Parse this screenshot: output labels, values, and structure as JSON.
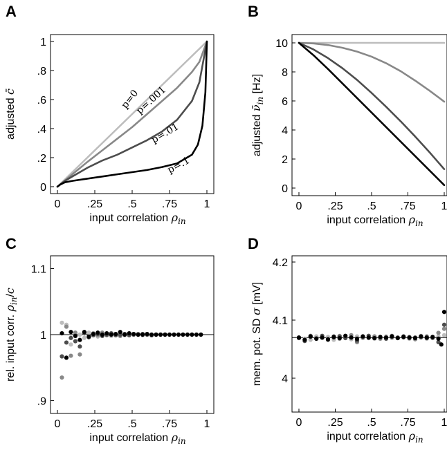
{
  "chart_data": [
    {
      "panel": "A",
      "type": "line",
      "xlabel": "input correlation",
      "xlabel_symbol": "ρ",
      "xlabel_sub": "in",
      "ylabel": "adjusted",
      "ylabel_symbol": "c̄",
      "xlim": [
        0,
        1
      ],
      "ylim": [
        0,
        1
      ],
      "xticks": [
        0,
        0.25,
        0.5,
        0.75,
        1
      ],
      "xtick_labels": [
        "0",
        ".25",
        ".5",
        ".75",
        "1"
      ],
      "yticks": [
        0,
        0.2,
        0.4,
        0.6,
        0.8,
        1
      ],
      "ytick_labels": [
        "0",
        ".2",
        ".4",
        ".6",
        ".8",
        "1"
      ],
      "series": [
        {
          "label": "p=0",
          "color": "#bdbdbd",
          "x": [
            0,
            0.1,
            0.2,
            0.3,
            0.4,
            0.5,
            0.6,
            0.7,
            0.8,
            0.9,
            1.0
          ],
          "y": [
            0,
            0.1,
            0.2,
            0.3,
            0.4,
            0.5,
            0.6,
            0.7,
            0.8,
            0.9,
            1.0
          ]
        },
        {
          "label": "p=.001",
          "color": "#888888",
          "x": [
            0,
            0.1,
            0.2,
            0.3,
            0.4,
            0.5,
            0.6,
            0.7,
            0.8,
            0.9,
            0.95,
            1.0
          ],
          "y": [
            0,
            0.085,
            0.17,
            0.25,
            0.33,
            0.41,
            0.5,
            0.59,
            0.68,
            0.79,
            0.86,
            1.0
          ]
        },
        {
          "label": "p=.01",
          "color": "#4d4d4d",
          "x": [
            0,
            0.05,
            0.1,
            0.2,
            0.3,
            0.4,
            0.5,
            0.6,
            0.7,
            0.8,
            0.9,
            0.95,
            1.0
          ],
          "y": [
            0,
            0.04,
            0.07,
            0.13,
            0.18,
            0.22,
            0.27,
            0.32,
            0.38,
            0.46,
            0.59,
            0.72,
            1.0
          ]
        },
        {
          "label": "p=.1",
          "color": "#000000",
          "x": [
            0,
            0.02,
            0.05,
            0.1,
            0.2,
            0.3,
            0.4,
            0.5,
            0.6,
            0.7,
            0.8,
            0.9,
            0.94,
            0.97,
            0.99,
            1.0
          ],
          "y": [
            0,
            0.015,
            0.03,
            0.04,
            0.055,
            0.07,
            0.085,
            0.1,
            0.115,
            0.135,
            0.16,
            0.22,
            0.29,
            0.42,
            0.65,
            1.0
          ]
        }
      ]
    },
    {
      "panel": "B",
      "type": "line",
      "xlabel": "input correlation",
      "xlabel_symbol": "ρ",
      "xlabel_sub": "in",
      "ylabel": "adjusted",
      "ylabel_symbol": "ν̄",
      "ylabel_sub": "in",
      "ylabel_unit": "[Hz]",
      "xlim": [
        0,
        1
      ],
      "ylim": [
        0,
        10
      ],
      "xticks": [
        0,
        0.25,
        0.5,
        0.75,
        1
      ],
      "xtick_labels": [
        "0",
        ".25",
        ".5",
        ".75",
        "1"
      ],
      "yticks": [
        0,
        2,
        4,
        6,
        8,
        10
      ],
      "ytick_labels": [
        "0",
        "2",
        "4",
        "6",
        "8",
        "10"
      ],
      "series": [
        {
          "color": "#bdbdbd",
          "x": [
            0,
            0.25,
            0.5,
            0.75,
            1.0
          ],
          "y": [
            10,
            10,
            10,
            10,
            10
          ]
        },
        {
          "color": "#888888",
          "x": [
            0,
            0.1,
            0.2,
            0.3,
            0.4,
            0.5,
            0.6,
            0.7,
            0.8,
            0.9,
            1.0
          ],
          "y": [
            10,
            9.96,
            9.85,
            9.66,
            9.4,
            9.05,
            8.6,
            8.05,
            7.4,
            6.7,
            5.95
          ]
        },
        {
          "color": "#4d4d4d",
          "x": [
            0,
            0.1,
            0.2,
            0.3,
            0.4,
            0.5,
            0.6,
            0.7,
            0.8,
            0.9,
            1.0
          ],
          "y": [
            10,
            9.55,
            8.95,
            8.25,
            7.45,
            6.55,
            5.6,
            4.6,
            3.55,
            2.45,
            1.3
          ]
        },
        {
          "color": "#000000",
          "x": [
            0,
            0.1,
            0.2,
            0.3,
            0.4,
            0.5,
            0.6,
            0.7,
            0.8,
            0.9,
            1.0
          ],
          "y": [
            10,
            9.15,
            8.2,
            7.2,
            6.2,
            5.2,
            4.2,
            3.2,
            2.2,
            1.2,
            0.2
          ]
        }
      ]
    },
    {
      "panel": "C",
      "type": "scatter",
      "xlabel": "input correlation",
      "xlabel_symbol": "ρ",
      "xlabel_sub": "in",
      "ylabel": "rel. input corr.",
      "ylabel_symbol": "ρ",
      "ylabel_sub": "in",
      "ylabel_den": "c",
      "xlim": [
        0,
        1
      ],
      "ylim": [
        0.89,
        1.11
      ],
      "xticks": [
        0,
        0.25,
        0.5,
        0.75,
        1
      ],
      "xtick_labels": [
        "0",
        ".25",
        ".5",
        ".75",
        "1"
      ],
      "yticks": [
        0.9,
        1.0,
        1.1
      ],
      "ytick_labels": [
        ".9",
        "1",
        "1.1"
      ],
      "reference_line": 1.0,
      "series": [
        {
          "color": "#bdbdbd",
          "x": [
            0.03,
            0.06,
            0.09,
            0.12,
            0.15,
            0.18,
            0.21,
            0.24,
            0.27,
            0.3,
            0.33,
            0.36,
            0.39,
            0.42,
            0.45,
            0.48,
            0.51,
            0.54,
            0.57,
            0.6
          ],
          "y": [
            1.018,
            1.015,
            0.985,
            0.99,
            1.0,
            0.995,
            1.003,
            1.0,
            0.997,
            1.001,
            1.0,
            0.998,
            1.001,
            1.0,
            0.999,
            1.0,
            1.001,
            1.0,
            0.999,
            1.0
          ]
        },
        {
          "color": "#888888",
          "x": [
            0.03,
            0.06,
            0.09,
            0.12,
            0.15,
            0.18,
            0.21,
            0.24,
            0.27,
            0.3,
            0.33,
            0.36,
            0.39,
            0.42,
            0.45,
            0.48,
            0.51,
            0.54,
            0.57,
            0.6
          ],
          "y": [
            0.935,
            1.012,
            0.968,
            1.003,
            0.97,
            1.004,
            0.997,
            1.002,
            0.999,
            1.003,
            0.999,
            1.001,
            1.0,
            0.998,
            1.001,
            1.0,
            1.0,
            1.001,
            1.0,
            1.0
          ]
        },
        {
          "color": "#4d4d4d",
          "x": [
            0.03,
            0.06,
            0.09,
            0.12,
            0.15,
            0.18,
            0.21,
            0.24,
            0.27,
            0.3,
            0.33,
            0.36,
            0.39,
            0.42,
            0.45,
            0.48,
            0.51,
            0.54,
            0.57,
            0.6,
            0.63,
            0.66,
            0.69,
            0.72
          ],
          "y": [
            0.967,
            0.988,
            0.995,
            0.99,
            0.982,
            1.002,
            0.996,
            0.999,
            1.001,
            0.998,
            1.0,
            1.002,
            0.999,
            1.0,
            1.001,
            0.999,
            1.0,
            1.0,
            1.001,
            1.0,
            0.999,
            1.0,
            1.0,
            1.0
          ]
        },
        {
          "color": "#000000",
          "x": [
            0.03,
            0.06,
            0.09,
            0.12,
            0.15,
            0.18,
            0.21,
            0.24,
            0.27,
            0.3,
            0.33,
            0.36,
            0.39,
            0.42,
            0.45,
            0.48,
            0.51,
            0.54,
            0.57,
            0.6,
            0.63,
            0.66,
            0.69,
            0.72,
            0.75,
            0.78,
            0.81,
            0.84,
            0.87,
            0.9,
            0.93,
            0.96
          ],
          "y": [
            1.002,
            0.965,
            1.004,
            0.998,
            0.992,
            1.004,
            0.997,
            1.001,
            1.003,
            1.0,
            1.002,
            1.0,
            1.001,
            1.004,
            1.0,
            1.002,
            1.001,
            1.0,
            1.0,
            1.001,
            1.0,
            1.0,
            1.0,
            1.0,
            1.0,
            1.0,
            1.0,
            1.0,
            1.0,
            1.0,
            1.0,
            1.0
          ]
        }
      ]
    },
    {
      "panel": "D",
      "type": "scatter",
      "xlabel": "input correlation",
      "xlabel_symbol": "ρ",
      "xlabel_sub": "in",
      "ylabel": "mem. pot. SD",
      "ylabel_symbol": "σ",
      "ylabel_unit": "[mV]",
      "xlim": [
        0,
        1
      ],
      "ylim": [
        3.95,
        4.2
      ],
      "xticks": [
        0,
        0.25,
        0.5,
        0.75,
        1
      ],
      "xtick_labels": [
        "0",
        ".25",
        ".5",
        ".75",
        "1"
      ],
      "yticks": [
        4.0,
        4.1,
        4.2
      ],
      "ytick_labels": [
        "4",
        "4.1",
        "4.2"
      ],
      "reference_line": 4.07,
      "series": [
        {
          "color": "#bdbdbd",
          "x": [
            0.0,
            0.04,
            0.08,
            0.12,
            0.16,
            0.2,
            0.24,
            0.28,
            0.32,
            0.36,
            0.4,
            0.44,
            0.48,
            0.52,
            0.56,
            0.6,
            0.64,
            0.68,
            0.72,
            0.76,
            0.8,
            0.84,
            0.88,
            0.92,
            0.96,
            1.0
          ],
          "y": [
            4.07,
            4.068,
            4.066,
            4.072,
            4.069,
            4.071,
            4.066,
            4.073,
            4.07,
            4.067,
            4.072,
            4.069,
            4.071,
            4.068,
            4.07,
            4.072,
            4.069,
            4.07,
            4.071,
            4.068,
            4.07,
            4.073,
            4.068,
            4.07,
            4.072,
            4.074
          ]
        },
        {
          "color": "#888888",
          "x": [
            0.0,
            0.04,
            0.08,
            0.12,
            0.16,
            0.2,
            0.24,
            0.28,
            0.32,
            0.36,
            0.4,
            0.44,
            0.48,
            0.52,
            0.56,
            0.6,
            0.64,
            0.68,
            0.72,
            0.76,
            0.8,
            0.84,
            0.88,
            0.92,
            0.96,
            1.0
          ],
          "y": [
            4.07,
            4.066,
            4.073,
            4.069,
            4.07,
            4.067,
            4.072,
            4.068,
            4.071,
            4.074,
            4.062,
            4.07,
            4.069,
            4.072,
            4.068,
            4.07,
            4.073,
            4.069,
            4.07,
            4.071,
            4.067,
            4.07,
            4.072,
            4.069,
            4.078,
            4.085
          ]
        },
        {
          "color": "#4d4d4d",
          "x": [
            0.0,
            0.04,
            0.08,
            0.12,
            0.16,
            0.2,
            0.24,
            0.28,
            0.32,
            0.36,
            0.4,
            0.44,
            0.48,
            0.52,
            0.56,
            0.6,
            0.64,
            0.68,
            0.72,
            0.76,
            0.8,
            0.84,
            0.88,
            0.92,
            0.96,
            1.0
          ],
          "y": [
            4.069,
            4.064,
            4.071,
            4.068,
            4.073,
            4.066,
            4.07,
            4.072,
            4.069,
            4.07,
            4.065,
            4.071,
            4.073,
            4.069,
            4.07,
            4.068,
            4.071,
            4.07,
            4.072,
            4.069,
            4.07,
            4.071,
            4.069,
            4.07,
            4.062,
            4.092
          ]
        },
        {
          "color": "#000000",
          "x": [
            0.0,
            0.04,
            0.08,
            0.12,
            0.16,
            0.2,
            0.24,
            0.28,
            0.32,
            0.36,
            0.4,
            0.44,
            0.48,
            0.52,
            0.56,
            0.6,
            0.64,
            0.68,
            0.72,
            0.76,
            0.8,
            0.84,
            0.88,
            0.92,
            0.96,
            0.98,
            1.0
          ],
          "y": [
            4.07,
            4.066,
            4.072,
            4.068,
            4.07,
            4.067,
            4.071,
            4.069,
            4.073,
            4.07,
            4.068,
            4.072,
            4.07,
            4.069,
            4.071,
            4.07,
            4.072,
            4.069,
            4.071,
            4.07,
            4.069,
            4.072,
            4.07,
            4.071,
            4.068,
            4.058,
            4.114
          ]
        }
      ]
    }
  ]
}
